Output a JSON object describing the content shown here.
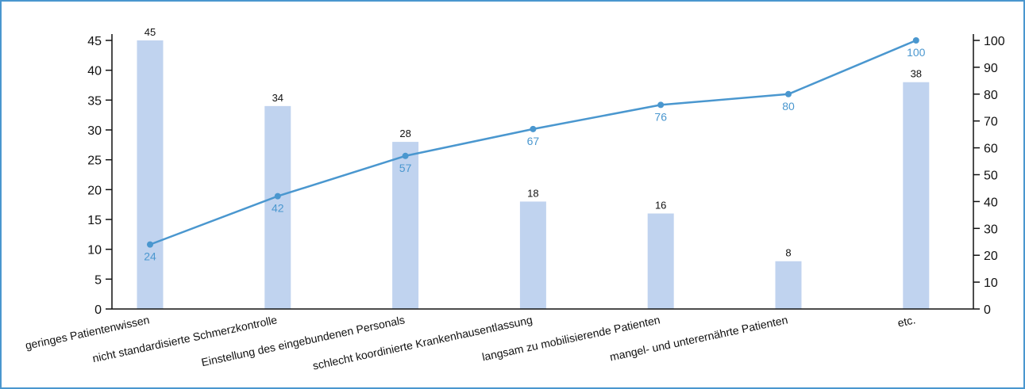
{
  "chart_data": {
    "type": "bar",
    "categories": [
      "geringes Patientenwissen",
      "nicht standardisierte Schmerzkontrolle",
      "Einstellung des eingebundenen Personals",
      "schlecht koordinierte Krankenhausentlassung",
      "langsam zu mobilisierende Patienten",
      "mangel- und unterernährte Patienten",
      "etc."
    ],
    "series": [
      {
        "type": "bar",
        "axis": "left",
        "values": [
          45,
          34,
          28,
          18,
          16,
          8,
          38
        ],
        "labels": [
          "45",
          "34",
          "28",
          "18",
          "16",
          "8",
          "38"
        ],
        "color": "#c0d3ef"
      },
      {
        "type": "line",
        "axis": "right",
        "values": [
          24,
          42,
          57,
          67,
          76,
          80,
          100
        ],
        "labels": [
          "24",
          "42",
          "57",
          "67",
          "76",
          "80",
          "100"
        ],
        "color": "#4a97cf"
      }
    ],
    "y_left": {
      "min": 0,
      "max": 45,
      "ticks": [
        "0",
        "5",
        "10",
        "15",
        "20",
        "25",
        "30",
        "35",
        "40",
        "45"
      ]
    },
    "y_right": {
      "min": 0,
      "max": 100,
      "ticks": [
        "0",
        "10",
        "20",
        "30",
        "40",
        "50",
        "60",
        "70",
        "80",
        "90",
        "100"
      ]
    },
    "grid": false,
    "legend": "none"
  }
}
